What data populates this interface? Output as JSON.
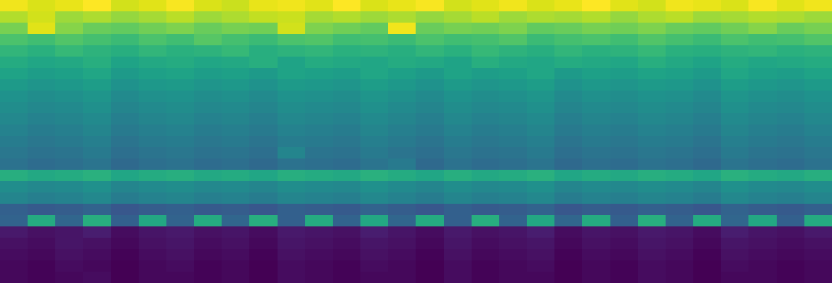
{
  "chart_data": {
    "type": "heatmap",
    "tick_labels": false,
    "cells": [
      [
        90,
        87,
        89,
        92,
        86,
        88,
        91,
        87,
        85,
        89,
        90,
        88,
        92,
        87,
        89,
        91,
        86,
        88,
        90,
        87,
        89,
        92,
        88,
        86,
        90,
        89,
        87,
        91,
        88,
        90
      ],
      [
        82,
        86,
        79,
        81,
        78,
        80,
        83,
        79,
        81,
        84,
        85,
        80,
        82,
        79,
        81,
        78,
        80,
        83,
        79,
        81,
        80,
        82,
        78,
        81,
        83,
        79,
        80,
        82,
        81,
        79
      ],
      [
        74,
        88,
        76,
        72,
        71,
        73,
        75,
        72,
        74,
        73,
        86,
        75,
        73,
        71,
        90,
        72,
        74,
        73,
        75,
        71,
        72,
        74,
        73,
        75,
        72,
        71,
        73,
        76,
        72,
        74
      ],
      [
        67,
        65,
        68,
        66,
        64,
        67,
        65,
        69,
        66,
        64,
        67,
        68,
        65,
        66,
        64,
        67,
        65,
        66,
        68,
        64,
        66,
        67,
        65,
        68,
        66,
        64,
        67,
        65,
        66,
        68
      ],
      [
        62,
        60,
        63,
        61,
        59,
        62,
        60,
        61,
        63,
        59,
        61,
        62,
        60,
        61,
        59,
        62,
        60,
        63,
        61,
        59,
        62,
        60,
        61,
        63,
        60,
        59,
        61,
        62,
        60,
        61
      ],
      [
        58,
        56,
        57,
        59,
        55,
        57,
        58,
        56,
        57,
        59,
        55,
        58,
        57,
        56,
        58,
        57,
        55,
        59,
        57,
        56,
        58,
        57,
        56,
        59,
        57,
        55,
        58,
        56,
        57,
        58
      ],
      [
        55,
        53,
        54,
        56,
        52,
        54,
        55,
        53,
        54,
        52,
        55,
        54,
        53,
        56,
        54,
        52,
        55,
        53,
        54,
        56,
        52,
        54,
        53,
        55,
        54,
        52,
        56,
        54,
        53,
        55
      ],
      [
        52,
        50,
        51,
        53,
        49,
        51,
        52,
        50,
        51,
        49,
        52,
        51,
        50,
        53,
        51,
        49,
        52,
        50,
        51,
        53,
        49,
        51,
        50,
        52,
        51,
        49,
        53,
        51,
        50,
        52
      ],
      [
        49,
        47,
        48,
        50,
        46,
        48,
        49,
        47,
        48,
        46,
        49,
        48,
        47,
        50,
        48,
        46,
        49,
        47,
        48,
        50,
        46,
        48,
        47,
        49,
        48,
        46,
        50,
        48,
        47,
        49
      ],
      [
        47,
        45,
        46,
        48,
        44,
        46,
        47,
        45,
        46,
        44,
        47,
        46,
        45,
        48,
        46,
        44,
        47,
        45,
        46,
        48,
        44,
        46,
        45,
        47,
        46,
        44,
        48,
        46,
        45,
        47
      ],
      [
        45,
        43,
        44,
        46,
        42,
        44,
        45,
        43,
        44,
        42,
        45,
        44,
        43,
        46,
        44,
        42,
        45,
        43,
        44,
        46,
        42,
        44,
        43,
        45,
        44,
        42,
        46,
        44,
        43,
        45
      ],
      [
        43,
        41,
        42,
        44,
        40,
        42,
        43,
        41,
        42,
        40,
        43,
        42,
        41,
        44,
        42,
        40,
        43,
        41,
        42,
        44,
        40,
        42,
        41,
        43,
        42,
        40,
        44,
        42,
        41,
        43
      ],
      [
        41,
        39,
        40,
        42,
        38,
        40,
        41,
        39,
        40,
        38,
        41,
        40,
        39,
        42,
        40,
        38,
        41,
        39,
        40,
        42,
        38,
        40,
        39,
        41,
        40,
        38,
        42,
        40,
        39,
        41
      ],
      [
        39,
        37,
        38,
        40,
        36,
        38,
        39,
        37,
        38,
        36,
        44,
        38,
        37,
        40,
        38,
        36,
        39,
        37,
        38,
        40,
        36,
        38,
        37,
        39,
        38,
        36,
        40,
        38,
        37,
        39
      ],
      [
        37,
        35,
        36,
        38,
        34,
        36,
        37,
        35,
        36,
        34,
        37,
        36,
        35,
        38,
        40,
        34,
        37,
        35,
        36,
        38,
        34,
        36,
        35,
        37,
        36,
        34,
        38,
        36,
        35,
        37
      ],
      [
        59,
        57,
        58,
        60,
        56,
        58,
        59,
        57,
        58,
        56,
        59,
        58,
        57,
        60,
        58,
        56,
        59,
        57,
        58,
        60,
        56,
        58,
        57,
        59,
        58,
        56,
        60,
        58,
        57,
        59
      ],
      [
        47,
        45,
        46,
        48,
        44,
        46,
        47,
        45,
        46,
        44,
        47,
        46,
        45,
        48,
        46,
        44,
        47,
        45,
        46,
        48,
        44,
        46,
        45,
        47,
        46,
        44,
        48,
        46,
        45,
        47
      ],
      [
        44,
        42,
        43,
        45,
        41,
        43,
        44,
        42,
        43,
        41,
        44,
        43,
        42,
        45,
        43,
        41,
        44,
        42,
        43,
        45,
        41,
        43,
        42,
        44,
        43,
        41,
        45,
        43,
        42,
        44
      ],
      [
        31,
        29,
        30,
        32,
        28,
        30,
        31,
        29,
        30,
        28,
        31,
        30,
        29,
        32,
        30,
        28,
        31,
        29,
        30,
        32,
        28,
        30,
        29,
        31,
        30,
        28,
        32,
        30,
        29,
        31
      ],
      [
        32,
        58,
        33,
        59,
        31,
        57,
        32,
        58,
        33,
        59,
        31,
        58,
        32,
        57,
        33,
        58,
        31,
        59,
        32,
        57,
        33,
        58,
        31,
        59,
        32,
        58,
        33,
        57,
        31,
        58
      ],
      [
        10,
        8,
        9,
        11,
        7,
        9,
        10,
        8,
        9,
        7,
        10,
        9,
        8,
        11,
        9,
        7,
        10,
        8,
        9,
        11,
        7,
        9,
        8,
        10,
        9,
        7,
        11,
        9,
        8,
        10
      ],
      [
        8,
        7,
        9,
        8,
        6,
        8,
        9,
        7,
        8,
        6,
        9,
        8,
        7,
        9,
        8,
        6,
        9,
        7,
        8,
        9,
        6,
        8,
        7,
        9,
        8,
        6,
        9,
        8,
        7,
        8
      ],
      [
        7,
        6,
        8,
        7,
        5,
        7,
        8,
        6,
        7,
        5,
        8,
        7,
        6,
        8,
        7,
        5,
        8,
        6,
        7,
        8,
        5,
        7,
        6,
        8,
        7,
        5,
        8,
        7,
        6,
        7
      ],
      [
        6,
        5,
        7,
        6,
        4,
        6,
        7,
        5,
        6,
        4,
        7,
        6,
        5,
        7,
        6,
        4,
        7,
        5,
        6,
        7,
        4,
        6,
        5,
        7,
        6,
        4,
        7,
        6,
        5,
        6
      ],
      [
        6,
        5,
        6,
        7,
        4,
        6,
        6,
        5,
        6,
        4,
        7,
        6,
        5,
        6,
        6,
        4,
        7,
        5,
        6,
        6,
        4,
        6,
        5,
        7,
        6,
        4,
        6,
        6,
        5,
        6
      ]
    ]
  }
}
